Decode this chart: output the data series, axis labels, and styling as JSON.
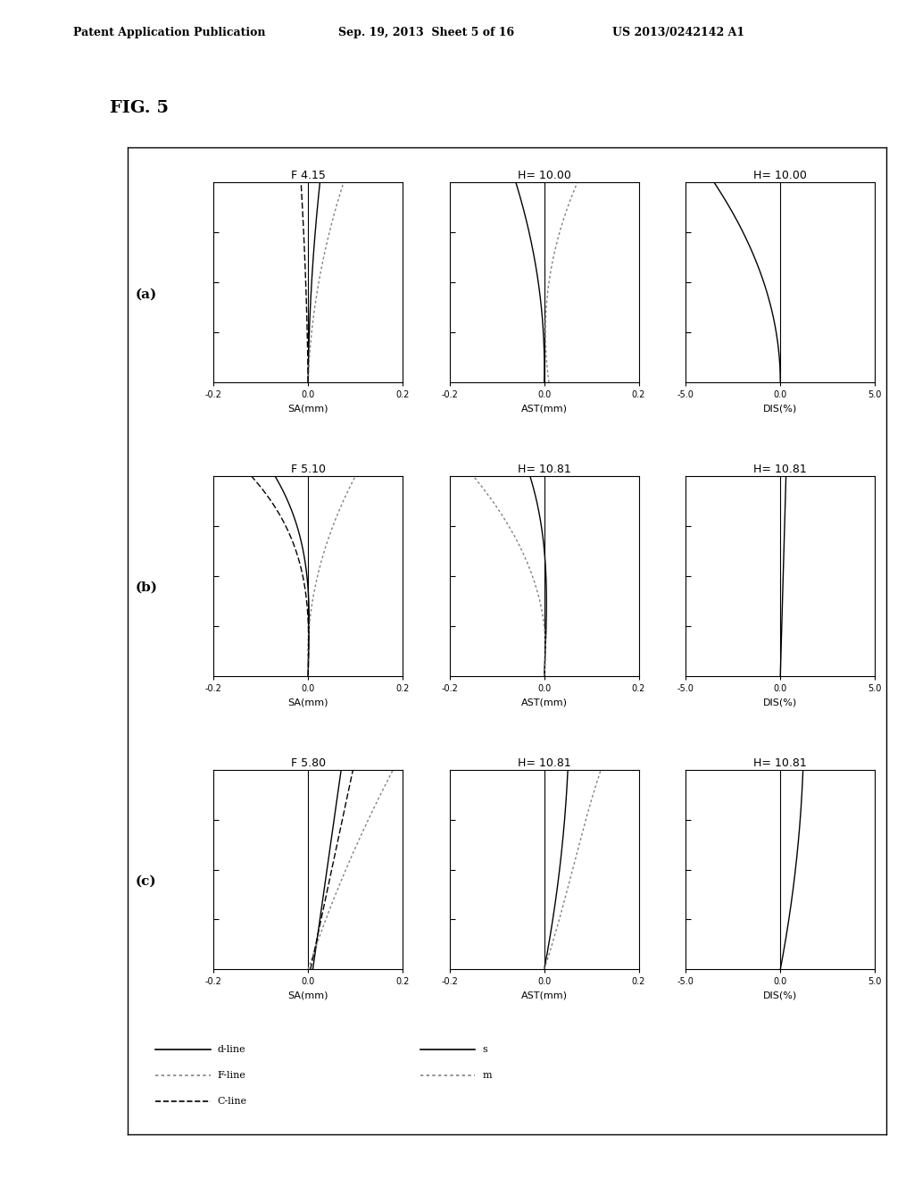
{
  "header_left": "Patent Application Publication",
  "header_mid": "Sep. 19, 2013  Sheet 5 of 16",
  "header_right": "US 2013/0242142 A1",
  "fig_label": "FIG. 5",
  "rows": [
    "(a)",
    "(b)",
    "(c)"
  ],
  "row_titles_sa": [
    "F 4.15",
    "F 5.10",
    "F 5.80"
  ],
  "row_titles_ast": [
    "H= 10.00",
    "H= 10.81",
    "H= 10.81"
  ],
  "row_titles_dis": [
    "H= 10.00",
    "H= 10.81",
    "H= 10.81"
  ],
  "sa_xlim": [
    -0.2,
    0.2
  ],
  "ast_xlim": [
    -0.2,
    0.2
  ],
  "dis_xlim": [
    -5.0,
    5.0
  ],
  "sa_xlabel": "SA(mm)",
  "ast_xlabel": "AST(mm)",
  "dis_xlabel": "DIS(%)",
  "sa_xticks": [
    -0.2,
    0.0,
    0.2
  ],
  "ast_xticks": [
    -0.2,
    0.0,
    0.2
  ],
  "dis_xticks": [
    -5.0,
    0.0,
    5.0
  ],
  "background_color": "#ffffff"
}
